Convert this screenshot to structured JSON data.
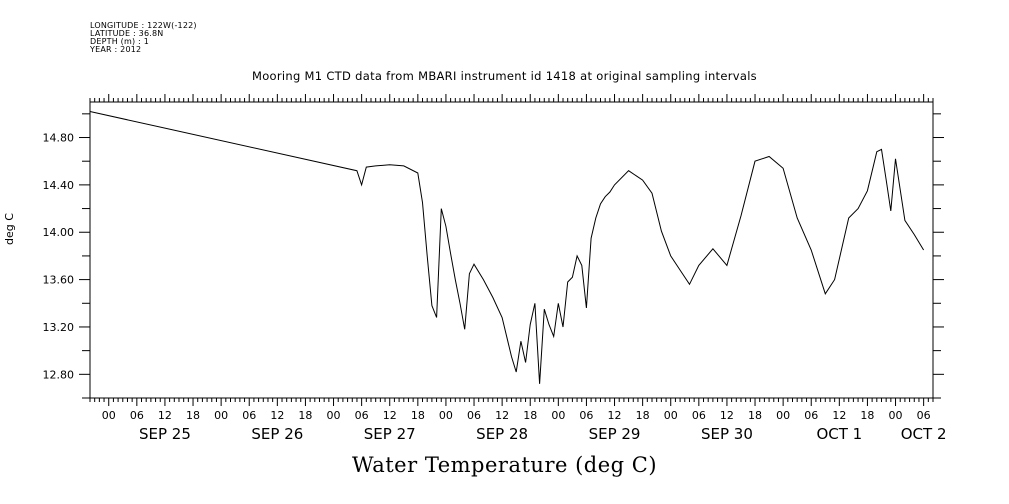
{
  "meta": {
    "longitude": "LONGITUDE : 122W(-122)",
    "latitude": "LATITUDE : 36.8N",
    "depth": "DEPTH (m) : 1",
    "year": "YEAR : 2012"
  },
  "chart_data": {
    "type": "line",
    "title": "Mooring M1 CTD data from MBARI instrument id 1418 at original sampling intervals",
    "xlabel": "Water Temperature (deg C)",
    "ylabel": "deg C",
    "xlim": [
      "2012-09-24T20:00",
      "2012-10-02T08:00"
    ],
    "ylim": [
      12.6,
      15.1
    ],
    "grid": false,
    "y_ticks": [
      "12.80",
      "13.20",
      "13.60",
      "14.00",
      "14.40",
      "14.80"
    ],
    "x_hour_ticks": [
      {
        "t": "2012-09-25T00:00",
        "label": "00"
      },
      {
        "t": "2012-09-25T06:00",
        "label": "06"
      },
      {
        "t": "2012-09-25T12:00",
        "label": "12"
      },
      {
        "t": "2012-09-25T18:00",
        "label": "18"
      },
      {
        "t": "2012-09-26T00:00",
        "label": "00"
      },
      {
        "t": "2012-09-26T06:00",
        "label": "06"
      },
      {
        "t": "2012-09-26T12:00",
        "label": "12"
      },
      {
        "t": "2012-09-26T18:00",
        "label": "18"
      },
      {
        "t": "2012-09-27T00:00",
        "label": "00"
      },
      {
        "t": "2012-09-27T06:00",
        "label": "06"
      },
      {
        "t": "2012-09-27T12:00",
        "label": "12"
      },
      {
        "t": "2012-09-27T18:00",
        "label": "18"
      },
      {
        "t": "2012-09-28T00:00",
        "label": "00"
      },
      {
        "t": "2012-09-28T06:00",
        "label": "06"
      },
      {
        "t": "2012-09-28T12:00",
        "label": "12"
      },
      {
        "t": "2012-09-28T18:00",
        "label": "18"
      },
      {
        "t": "2012-09-29T00:00",
        "label": "00"
      },
      {
        "t": "2012-09-29T06:00",
        "label": "06"
      },
      {
        "t": "2012-09-29T12:00",
        "label": "12"
      },
      {
        "t": "2012-09-29T18:00",
        "label": "18"
      },
      {
        "t": "2012-09-30T00:00",
        "label": "00"
      },
      {
        "t": "2012-09-30T06:00",
        "label": "06"
      },
      {
        "t": "2012-09-30T12:00",
        "label": "12"
      },
      {
        "t": "2012-09-30T18:00",
        "label": "18"
      },
      {
        "t": "2012-10-01T00:00",
        "label": "00"
      },
      {
        "t": "2012-10-01T06:00",
        "label": "06"
      },
      {
        "t": "2012-10-01T12:00",
        "label": "12"
      },
      {
        "t": "2012-10-01T18:00",
        "label": "18"
      },
      {
        "t": "2012-10-02T00:00",
        "label": "00"
      },
      {
        "t": "2012-10-02T06:00",
        "label": "06"
      }
    ],
    "x_day_labels": [
      {
        "t": "2012-09-25T12:00",
        "label": "SEP 25"
      },
      {
        "t": "2012-09-26T12:00",
        "label": "SEP 26"
      },
      {
        "t": "2012-09-27T12:00",
        "label": "SEP 27"
      },
      {
        "t": "2012-09-28T12:00",
        "label": "SEP 28"
      },
      {
        "t": "2012-09-29T12:00",
        "label": "SEP 29"
      },
      {
        "t": "2012-09-30T12:00",
        "label": "SEP 30"
      },
      {
        "t": "2012-10-01T12:00",
        "label": "OCT  1"
      },
      {
        "t": "2012-10-02T06:00",
        "label": "OCT  2"
      }
    ],
    "series": [
      {
        "color": "#000000",
        "x": [
          "2012-09-24T20:00",
          "2012-09-27T05:00",
          "2012-09-27T06:00",
          "2012-09-27T07:00",
          "2012-09-27T09:00",
          "2012-09-27T12:00",
          "2012-09-27T15:00",
          "2012-09-27T18:00",
          "2012-09-27T19:00",
          "2012-09-27T20:00",
          "2012-09-27T21:00",
          "2012-09-27T22:00",
          "2012-09-27T23:00",
          "2012-09-28T00:00",
          "2012-09-28T01:00",
          "2012-09-28T02:00",
          "2012-09-28T03:00",
          "2012-09-28T04:00",
          "2012-09-28T05:00",
          "2012-09-28T06:00",
          "2012-09-28T08:00",
          "2012-09-28T10:00",
          "2012-09-28T12:00",
          "2012-09-28T14:00",
          "2012-09-28T15:00",
          "2012-09-28T16:00",
          "2012-09-28T17:00",
          "2012-09-28T18:00",
          "2012-09-28T19:00",
          "2012-09-28T20:00",
          "2012-09-28T21:00",
          "2012-09-28T22:00",
          "2012-09-28T23:00",
          "2012-09-29T00:00",
          "2012-09-29T01:00",
          "2012-09-29T02:00",
          "2012-09-29T03:00",
          "2012-09-29T04:00",
          "2012-09-29T05:00",
          "2012-09-29T06:00",
          "2012-09-29T07:00",
          "2012-09-29T08:00",
          "2012-09-29T09:00",
          "2012-09-29T10:00",
          "2012-09-29T11:00",
          "2012-09-29T12:00",
          "2012-09-29T15:00",
          "2012-09-29T18:00",
          "2012-09-29T20:00",
          "2012-09-29T22:00",
          "2012-09-30T00:00",
          "2012-09-30T02:00",
          "2012-09-30T04:00",
          "2012-09-30T06:00",
          "2012-09-30T09:00",
          "2012-09-30T12:00",
          "2012-09-30T15:00",
          "2012-09-30T18:00",
          "2012-09-30T21:00",
          "2012-10-01T00:00",
          "2012-10-01T03:00",
          "2012-10-01T06:00",
          "2012-10-01T09:00",
          "2012-10-01T11:00",
          "2012-10-01T14:00",
          "2012-10-01T16:00",
          "2012-10-01T18:00",
          "2012-10-01T20:00",
          "2012-10-01T21:00",
          "2012-10-01T22:00",
          "2012-10-01T23:00",
          "2012-10-02T00:00",
          "2012-10-02T02:00",
          "2012-10-02T04:00",
          "2012-10-02T06:00"
        ],
        "y": [
          15.02,
          14.52,
          14.4,
          14.55,
          14.56,
          14.57,
          14.56,
          14.5,
          14.25,
          13.8,
          13.38,
          13.28,
          14.2,
          14.05,
          13.82,
          13.6,
          13.4,
          13.18,
          13.65,
          13.73,
          13.6,
          13.45,
          13.28,
          12.95,
          12.82,
          13.08,
          12.9,
          13.22,
          13.4,
          12.72,
          13.35,
          13.22,
          13.12,
          13.4,
          13.2,
          13.58,
          13.62,
          13.8,
          13.72,
          13.36,
          13.95,
          14.12,
          14.24,
          14.3,
          14.34,
          14.4,
          14.52,
          14.44,
          14.33,
          14.01,
          13.8,
          13.68,
          13.56,
          13.72,
          13.86,
          13.72,
          14.14,
          14.6,
          14.64,
          14.54,
          14.12,
          13.85,
          13.48,
          13.6,
          14.12,
          14.2,
          14.35,
          14.68,
          14.7,
          14.44,
          14.18,
          14.62,
          14.1,
          13.98,
          13.85
        ]
      }
    ]
  }
}
